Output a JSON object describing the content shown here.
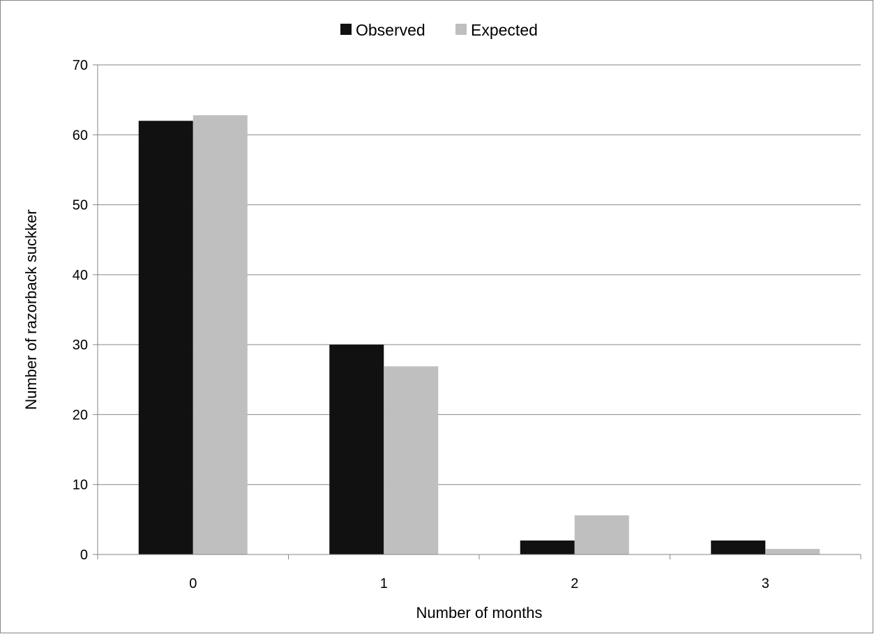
{
  "chart_data": {
    "type": "bar",
    "title": "",
    "xlabel": "Number of months",
    "ylabel": "Number of razorback suckker",
    "categories": [
      "0",
      "1",
      "2",
      "3"
    ],
    "series": [
      {
        "name": "Observed",
        "values": [
          62,
          30,
          2,
          2
        ],
        "color": "#111111"
      },
      {
        "name": "Expected",
        "values": [
          62.8,
          26.9,
          5.6,
          0.8
        ],
        "color": "#bfbfbf"
      }
    ],
    "ylim": [
      0,
      70
    ],
    "yticks": [
      "0",
      "10",
      "20",
      "30",
      "40",
      "50",
      "60",
      "70"
    ],
    "grid": "horizontal",
    "legend_position": "top"
  }
}
